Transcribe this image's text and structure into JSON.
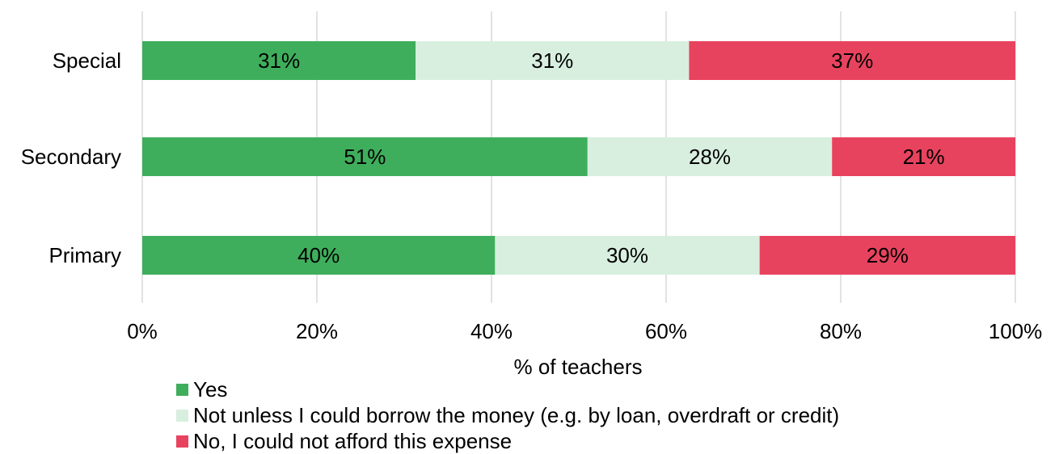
{
  "chart_data": {
    "type": "bar",
    "orientation": "horizontal",
    "stacked": true,
    "categories": [
      "Special",
      "Secondary",
      "Primary"
    ],
    "series": [
      {
        "name": "Yes",
        "color": "#3fae5c",
        "values": [
          31,
          51,
          40
        ],
        "labels": [
          "31%",
          "51%",
          "40%"
        ]
      },
      {
        "name": "Not unless I could borrow the money (e.g. by loan, overdraft or credit)",
        "color": "#d8efdf",
        "values": [
          31,
          28,
          30
        ],
        "labels": [
          "31%",
          "28%",
          "30%"
        ]
      },
      {
        "name": "No, I could not afford this expense",
        "color": "#e8435e",
        "values": [
          37,
          21,
          29
        ],
        "labels": [
          "37%",
          "21%",
          "29%"
        ]
      }
    ],
    "xlabel": "% of teachers",
    "xlim": [
      0,
      100
    ],
    "xticks": [
      "0%",
      "20%",
      "40%",
      "60%",
      "80%",
      "100%"
    ],
    "grid": "vertical",
    "legend_position": "bottom-left"
  }
}
